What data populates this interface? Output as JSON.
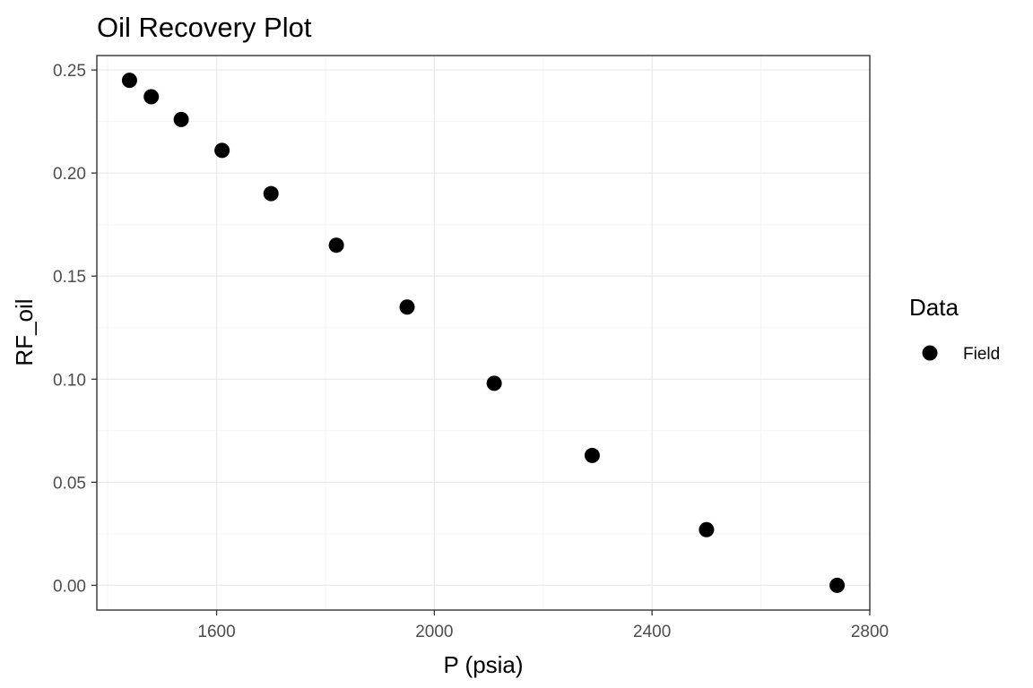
{
  "chart_data": {
    "type": "scatter",
    "title": "Oil Recovery Plot",
    "xlabel": "P (psia)",
    "ylabel": "RF_oil",
    "xlim": [
      1380,
      2800
    ],
    "ylim": [
      -0.012,
      0.257
    ],
    "x_ticks": [
      1600,
      2000,
      2400,
      2800
    ],
    "y_ticks": [
      0.0,
      0.05,
      0.1,
      0.15,
      0.2,
      0.25
    ],
    "x_tick_labels": [
      "1600",
      "2000",
      "2400",
      "2800"
    ],
    "y_tick_labels": [
      "0.00",
      "0.05",
      "0.10",
      "0.15",
      "0.20",
      "0.25"
    ],
    "grid": true,
    "legend": {
      "title": "Data",
      "placement": "right",
      "entries": [
        "Field"
      ]
    },
    "series": [
      {
        "name": "Field",
        "color": "#000000",
        "x": [
          1440,
          1480,
          1535,
          1610,
          1700,
          1820,
          1950,
          2110,
          2290,
          2500,
          2740
        ],
        "y": [
          0.245,
          0.237,
          0.226,
          0.211,
          0.19,
          0.165,
          0.135,
          0.098,
          0.063,
          0.027,
          0.0
        ]
      }
    ]
  },
  "colors": {
    "background": "#ffffff",
    "panel_border": "#333333",
    "grid_major": "#ebebeb",
    "grid_minor": "#f5f5f5",
    "tick_label": "#4d4d4d",
    "point": "#000000"
  }
}
